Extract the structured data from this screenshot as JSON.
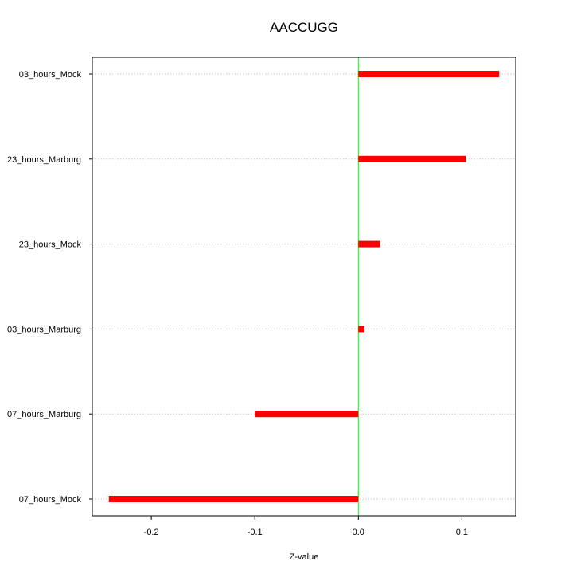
{
  "chart_data": {
    "type": "bar",
    "orientation": "horizontal",
    "title": "AACCUGG",
    "xlabel": "Z-value",
    "ylabel": "",
    "categories": [
      "03_hours_Mock",
      "23_hours_Marburg",
      "23_hours_Mock",
      "03_hours_Marburg",
      "07_hours_Marburg",
      "07_hours_Mock"
    ],
    "values": [
      0.136,
      0.104,
      0.021,
      0.006,
      -0.1,
      -0.241
    ],
    "xlim": [
      -0.257,
      0.152
    ],
    "xticks": [
      -0.2,
      -0.1,
      0.0,
      0.1
    ],
    "xtick_labels": [
      "-0.2",
      "-0.1",
      "0.0",
      "0.1"
    ],
    "reference_line": 0,
    "grid": "horizontal dotted",
    "bar_color": "#ff0000",
    "reference_line_color": "#00ff00",
    "grid_color": "#c8c8c8"
  }
}
